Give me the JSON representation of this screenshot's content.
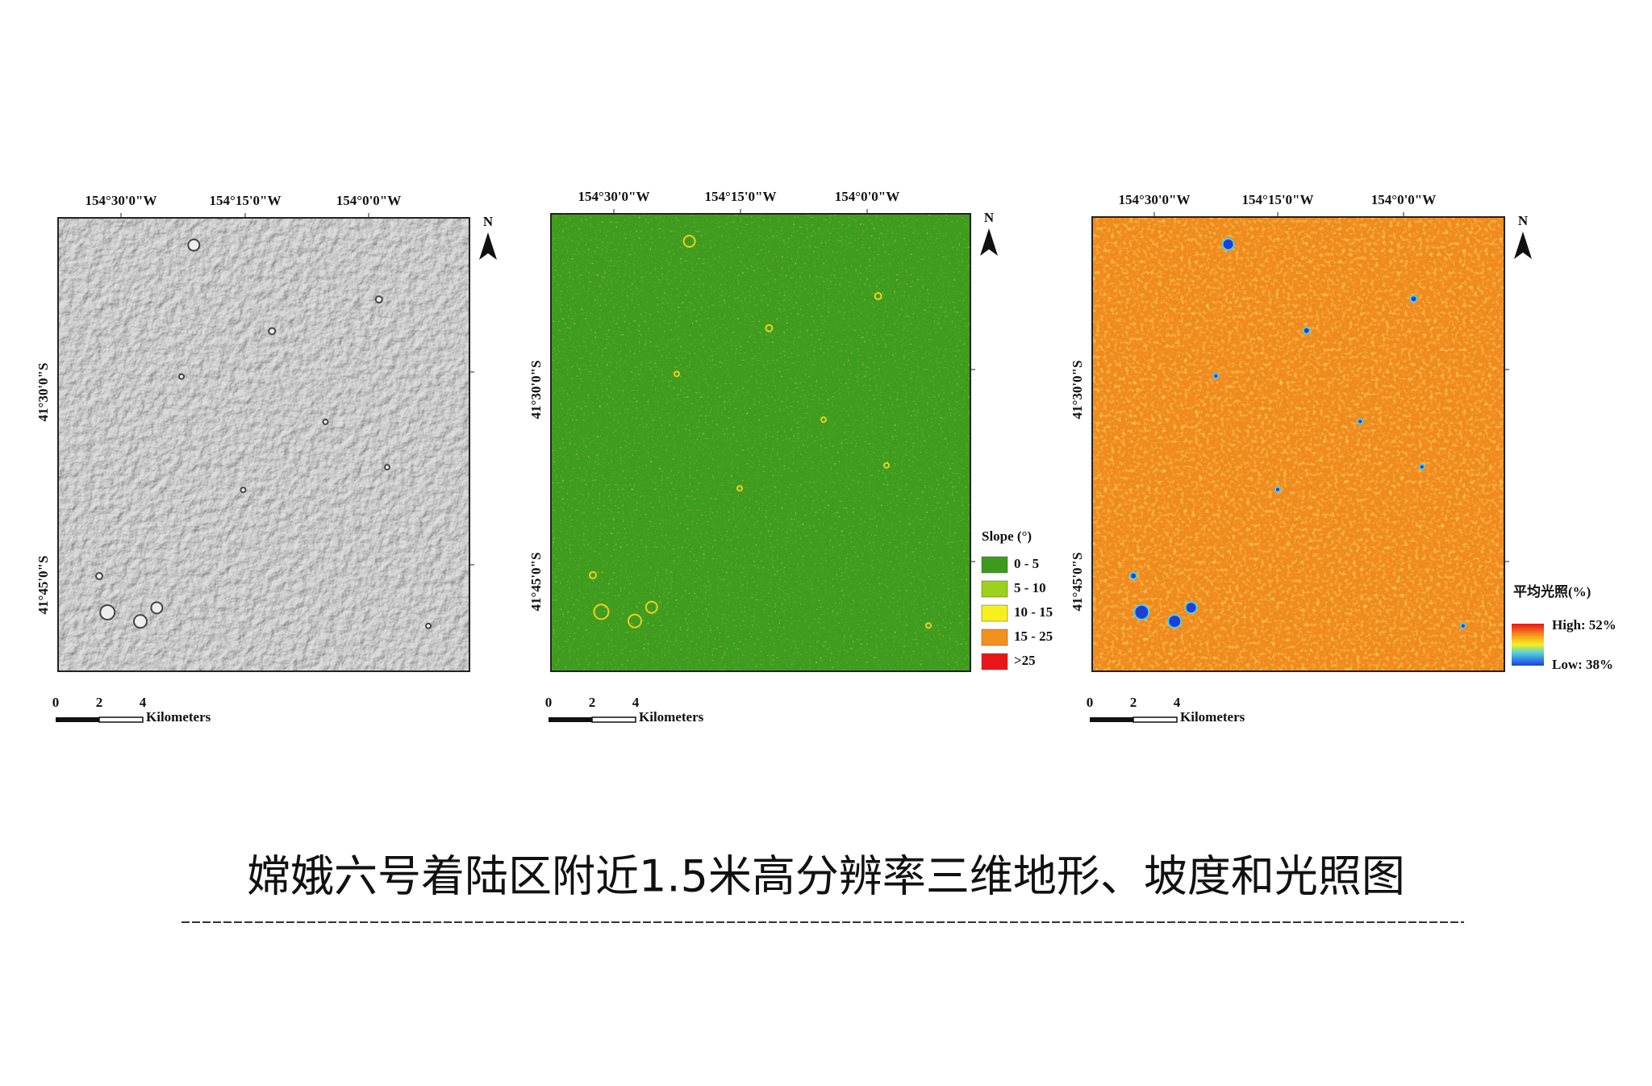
{
  "panels": [
    {
      "x_labels": [
        "154°30'0\"W",
        "154°15'0\"W",
        "154°0'0\"W"
      ],
      "y_labels": [
        "41°30'0\"S",
        "41°45'0\"S"
      ],
      "north": "N",
      "scale": {
        "ticks": [
          "0",
          "2",
          "4"
        ],
        "unit": "Kilometers"
      }
    },
    {
      "x_labels": [
        "154°30'0\"W",
        "154°15'0\"W",
        "154°0'0\"W"
      ],
      "y_labels": [
        "41°30'0\"S",
        "41°45'0\"S"
      ],
      "north": "N",
      "scale": {
        "ticks": [
          "0",
          "2",
          "4"
        ],
        "unit": "Kilometers"
      },
      "legend": {
        "title": "Slope (°)",
        "items": [
          {
            "label": "0 - 5",
            "color": "#3c9a1c"
          },
          {
            "label": "5 - 10",
            "color": "#9bd21c"
          },
          {
            "label": "10 - 15",
            "color": "#f6f01e"
          },
          {
            "label": "15 - 25",
            "color": "#f3901e"
          },
          {
            "label": ">25",
            "color": "#e8161a"
          }
        ]
      }
    },
    {
      "x_labels": [
        "154°30'0\"W",
        "154°15'0\"W",
        "154°0'0\"W"
      ],
      "y_labels": [
        "41°30'0\"S",
        "41°45'0\"S"
      ],
      "north": "N",
      "scale": {
        "ticks": [
          "0",
          "2",
          "4"
        ],
        "unit": "Kilometers"
      },
      "legend": {
        "title": "平均光照(%)",
        "high": "High: 52%",
        "low": "Low: 38%"
      }
    }
  ],
  "caption": "嫦娥六号着陆区附近1.5米高分辨率三维地形、坡度和光照图"
}
